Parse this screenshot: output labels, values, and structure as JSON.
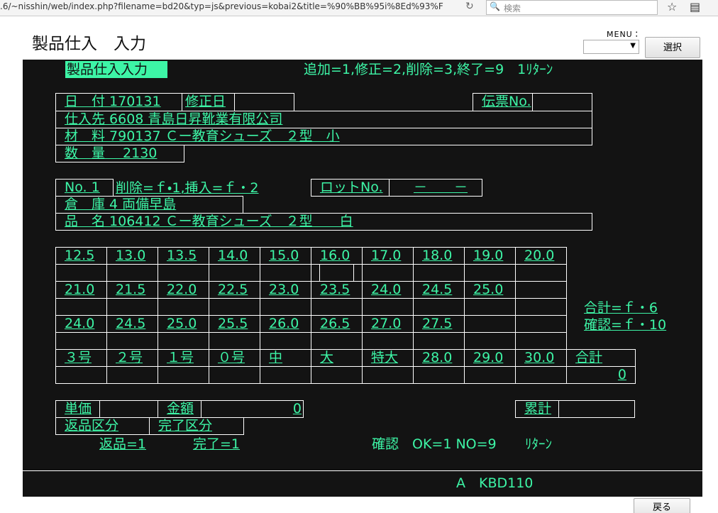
{
  "browser": {
    "url": ".6/~nisshin/web/index.php?filename=bd20&typ=js&previous=kobai2&title=%90%BB%95i%8Ed%93%F",
    "search": "検索"
  },
  "page": {
    "title": "製品仕入　入力",
    "menu_label": "MENU：",
    "select_button": "選択",
    "back_button": "戻る"
  },
  "terminal": {
    "screen_title": "製品仕入入力",
    "commands": "追加=1,修正=2,削除=3,終了=9　1ﾘﾀｰﾝ",
    "date": "日　付 170131",
    "revision_date": "修正日",
    "slip_no": "伝票No.",
    "supplier": "仕入先 6608 青島日昇靴業有限公司",
    "material": "材　料 790137 Ｃー教育シューズ　２型　小",
    "quantity": "数　量　 2130",
    "line_no": "No. 1",
    "line_keys": "削除=ｆ・1,挿入=ｆ・2",
    "lot_no": "ロットNo.",
    "lot_value": "－　　－",
    "warehouse": "倉　庫 4 両備早島",
    "product": "品　名 106412 Ｃー教育シューズ　２型　　白",
    "size_rows": [
      [
        "12.5",
        "13.0",
        "13.5",
        "14.0",
        "15.0",
        "16.0",
        "17.0",
        "18.0",
        "19.0",
        "20.0"
      ],
      [
        "21.0",
        "21.5",
        "22.0",
        "22.5",
        "23.0",
        "23.5",
        "24.0",
        "24.5",
        "25.0",
        null
      ],
      [
        "24.0",
        "24.5",
        "25.0",
        "25.5",
        "26.0",
        "26.5",
        "27.0",
        "27.5",
        null,
        null
      ],
      [
        "３号",
        "２号",
        "１号",
        "０号",
        "中",
        "大",
        "特大",
        "28.0",
        "29.0",
        "30.0",
        "合計"
      ]
    ],
    "size_total": "0",
    "total_key": "合計=ｆ・6",
    "confirm_key": "確認=ｆ・10",
    "unit_price": "単価",
    "amount": "金額",
    "amount_value": "0",
    "cumulative": "累計",
    "return_class": "返品区分",
    "complete_class": "完了区分",
    "return_hint": "返品=1",
    "complete_hint": "完了=1",
    "confirm_prompt": "確認　OK=1 NO=9",
    "return_key": "ﾘﾀｰﾝ",
    "status": "A　KBD110"
  }
}
